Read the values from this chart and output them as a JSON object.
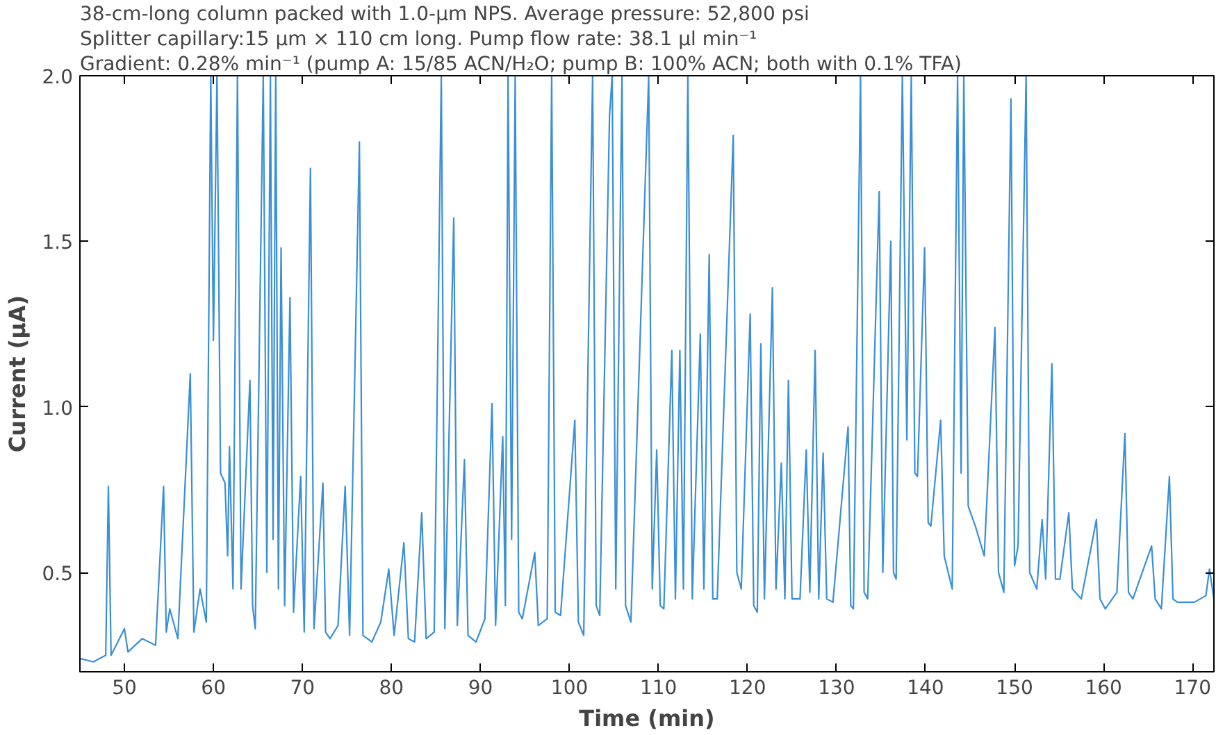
{
  "chart_data": {
    "type": "line",
    "title": "38-cm-long column packed with 1.0-µm NPS. Average pressure: 52,800 psi",
    "subtitle": "Splitter capillary:15 µm × 110 cm long. Pump flow rate: 38.1 µl min⁻¹",
    "annotations": [
      "Gradient: 0.28% min⁻¹ (pump A: 15/85 ACN/H₂O; pump B: 100% ACN; both with 0.1% TFA)"
    ],
    "xlabel": "Time (min)",
    "ylabel": "Current (µA)",
    "xlim": [
      45.0,
      172.4
    ],
    "ylim": [
      0.2,
      2.0
    ],
    "xticks": [
      50,
      60,
      70,
      80,
      90,
      100,
      110,
      120,
      130,
      140,
      150,
      160,
      170
    ],
    "yticks": [
      {
        "value": 0.5,
        "label": "0.5"
      },
      {
        "value": 1.0,
        "label": "1.0"
      },
      {
        "value": 1.5,
        "label": "1.5"
      },
      {
        "value": 2.0,
        "label": "2.0"
      }
    ],
    "grid": false,
    "series": [
      {
        "color": "#3a8fd6",
        "x": [
          45.0,
          46.5,
          47.9,
          48.2,
          48.5,
          50.0,
          50.4,
          52.0,
          53.5,
          54.4,
          54.7,
          55.1,
          56.0,
          57.4,
          57.8,
          58.5,
          59.2,
          59.7,
          60.0,
          60.4,
          60.8,
          61.3,
          61.6,
          61.8,
          62.2,
          62.7,
          63.1,
          64.1,
          64.4,
          64.7,
          65.6,
          66.0,
          66.4,
          66.7,
          67.0,
          67.3,
          67.6,
          68.0,
          68.6,
          69.0,
          69.8,
          70.2,
          70.9,
          71.3,
          72.3,
          72.6,
          73.1,
          74.0,
          74.8,
          75.3,
          76.4,
          76.8,
          77.8,
          78.8,
          79.7,
          80.3,
          81.4,
          81.9,
          82.6,
          83.4,
          83.9,
          84.8,
          85.6,
          86.0,
          87.0,
          87.4,
          88.2,
          88.6,
          89.5,
          90.5,
          91.3,
          91.7,
          92.5,
          92.8,
          93.1,
          93.5,
          93.9,
          94.3,
          94.7,
          96.1,
          96.5,
          97.5,
          98.0,
          98.4,
          99.0,
          100.6,
          101.0,
          101.6,
          102.6,
          103.0,
          103.4,
          104.5,
          104.8,
          105.2,
          105.9,
          106.3,
          106.9,
          108.9,
          109.3,
          109.8,
          110.2,
          110.6,
          111.5,
          111.9,
          112.4,
          112.8,
          113.3,
          113.8,
          114.7,
          115.1,
          115.7,
          116.1,
          116.6,
          118.4,
          118.8,
          119.3,
          120.3,
          120.7,
          121.1,
          121.5,
          121.9,
          122.8,
          123.2,
          123.8,
          124.2,
          124.6,
          125.0,
          125.9,
          126.6,
          127.0,
          127.6,
          128.0,
          128.5,
          128.9,
          129.6,
          131.3,
          131.6,
          131.9,
          132.7,
          133.1,
          133.5,
          134.8,
          135.2,
          136.1,
          136.4,
          136.7,
          137.4,
          137.9,
          138.4,
          138.8,
          139.1,
          139.9,
          140.3,
          140.6,
          141.7,
          142.1,
          143.0,
          143.6,
          144.0,
          144.3,
          144.8,
          145.6,
          146.6,
          147.8,
          148.2,
          148.8,
          149.6,
          150.0,
          150.4,
          151.3,
          151.7,
          152.5,
          153.1,
          153.5,
          154.2,
          154.6,
          155.1,
          156.1,
          156.5,
          157.5,
          159.2,
          159.6,
          160.2,
          161.5,
          162.4,
          162.8,
          163.3,
          165.4,
          165.8,
          166.5,
          167.4,
          167.8,
          168.3,
          170.2,
          171.5,
          171.9,
          172.4
        ],
        "values": [
          0.24,
          0.23,
          0.25,
          0.76,
          0.25,
          0.33,
          0.26,
          0.3,
          0.28,
          0.76,
          0.32,
          0.39,
          0.3,
          1.1,
          0.32,
          0.45,
          0.35,
          2.0,
          1.2,
          2.0,
          0.8,
          0.77,
          0.55,
          0.88,
          0.45,
          2.0,
          0.45,
          1.08,
          0.4,
          0.33,
          2.0,
          0.5,
          2.0,
          0.6,
          2.0,
          0.45,
          1.48,
          0.4,
          1.33,
          0.38,
          0.79,
          0.32,
          1.72,
          0.33,
          0.77,
          0.32,
          0.3,
          0.34,
          0.76,
          0.31,
          1.8,
          0.31,
          0.29,
          0.35,
          0.51,
          0.31,
          0.59,
          0.3,
          0.29,
          0.68,
          0.3,
          0.32,
          2.0,
          0.33,
          1.57,
          0.34,
          0.84,
          0.31,
          0.29,
          0.36,
          1.01,
          0.34,
          0.91,
          0.4,
          2.0,
          0.6,
          2.0,
          0.38,
          0.36,
          0.56,
          0.34,
          0.36,
          2.0,
          0.38,
          0.37,
          0.96,
          0.35,
          0.31,
          2.0,
          0.4,
          0.37,
          1.88,
          2.0,
          0.45,
          2.0,
          0.4,
          0.35,
          2.0,
          0.45,
          0.87,
          0.4,
          0.39,
          1.17,
          0.42,
          1.17,
          0.45,
          2.0,
          0.42,
          1.22,
          0.45,
          1.46,
          0.42,
          0.42,
          1.82,
          0.5,
          0.45,
          1.28,
          0.4,
          0.38,
          1.19,
          0.42,
          1.36,
          0.45,
          0.83,
          0.42,
          1.08,
          0.42,
          0.42,
          0.87,
          0.44,
          1.17,
          0.42,
          0.86,
          0.42,
          0.41,
          0.94,
          0.4,
          0.39,
          2.0,
          0.44,
          0.42,
          1.65,
          0.5,
          1.5,
          0.5,
          0.48,
          2.0,
          0.9,
          2.0,
          0.8,
          0.79,
          1.48,
          0.65,
          0.64,
          0.96,
          0.55,
          0.45,
          2.0,
          0.8,
          2.0,
          0.7,
          0.64,
          0.55,
          1.24,
          0.5,
          0.44,
          1.93,
          0.52,
          0.58,
          2.0,
          0.5,
          0.45,
          0.66,
          0.48,
          1.13,
          0.48,
          0.48,
          0.68,
          0.45,
          0.42,
          0.66,
          0.42,
          0.39,
          0.44,
          0.92,
          0.44,
          0.42,
          0.58,
          0.42,
          0.39,
          0.79,
          0.42,
          0.41,
          0.41,
          0.43,
          0.51,
          0.42
        ]
      }
    ]
  }
}
